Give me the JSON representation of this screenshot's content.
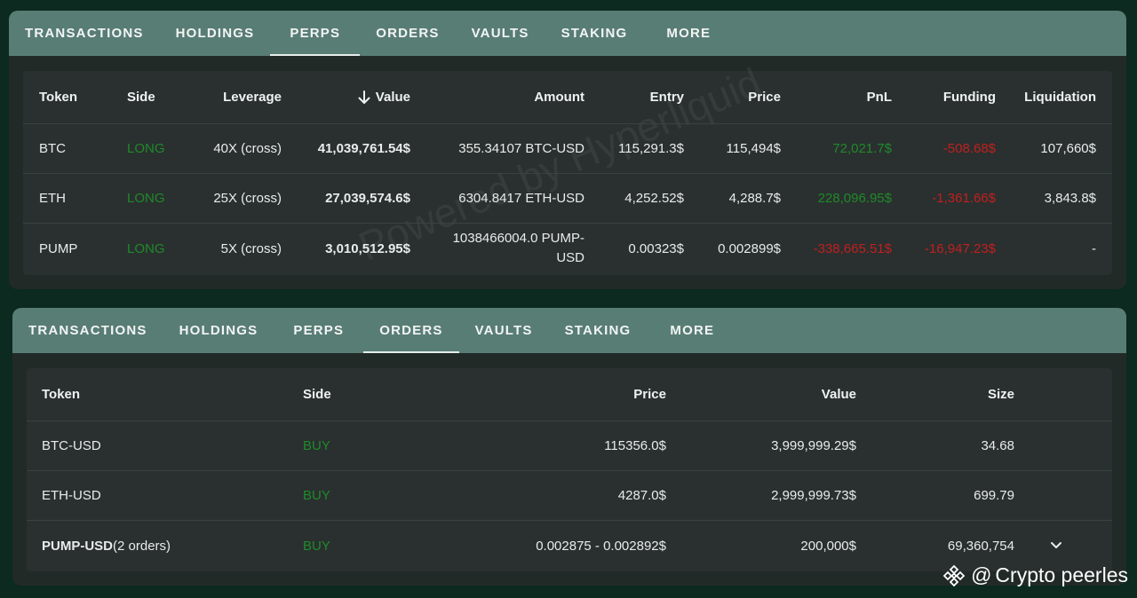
{
  "perps_panel": {
    "tabs": [
      "TRANSACTIONS",
      "HOLDINGS",
      "PERPS",
      "ORDERS",
      "VAULTS",
      "STAKING",
      "MORE"
    ],
    "active_tab": "PERPS",
    "watermark": "Powered by Hyperliquid",
    "columns": {
      "token": "Token",
      "side": "Side",
      "leverage": "Leverage",
      "value": "Value",
      "amount": "Amount",
      "entry": "Entry",
      "price": "Price",
      "pnl": "PnL",
      "funding": "Funding",
      "liquidation": "Liquidation"
    },
    "rows": [
      {
        "token": "BTC",
        "side": "LONG",
        "leverage": "40X (cross)",
        "value": "41,039,761.54$",
        "amount": "355.34107 BTC-USD",
        "entry": "115,291.3$",
        "price": "115,494$",
        "pnl": "72,021.7$",
        "funding": "-508.68$",
        "liquidation": "107,660$"
      },
      {
        "token": "ETH",
        "side": "LONG",
        "leverage": "25X (cross)",
        "value": "27,039,574.6$",
        "amount": "6304.8417 ETH-USD",
        "entry": "4,252.52$",
        "price": "4,288.7$",
        "pnl": "228,096.95$",
        "funding": "-1,361.66$",
        "liquidation": "3,843.8$"
      },
      {
        "token": "PUMP",
        "side": "LONG",
        "leverage": "5X (cross)",
        "value": "3,010,512.95$",
        "amount": "1038466004.0 PUMP-USD",
        "entry": "0.00323$",
        "price": "0.002899$",
        "pnl": "-338,665.51$",
        "funding": "-16,947.23$",
        "liquidation": "-"
      }
    ]
  },
  "orders_panel": {
    "tabs": [
      "TRANSACTIONS",
      "HOLDINGS",
      "PERPS",
      "ORDERS",
      "VAULTS",
      "STAKING",
      "MORE"
    ],
    "active_tab": "ORDERS",
    "columns": {
      "token": "Token",
      "side": "Side",
      "price": "Price",
      "value": "Value",
      "size": "Size"
    },
    "rows": [
      {
        "token": "BTC-USD",
        "token_suffix": "",
        "side": "BUY",
        "price": "115356.0$",
        "value": "3,999,999.29$",
        "size": "34.68"
      },
      {
        "token": "ETH-USD",
        "token_suffix": "",
        "side": "BUY",
        "price": "4287.0$",
        "value": "2,999,999.73$",
        "size": "699.79"
      },
      {
        "token": "PUMP-USD",
        "token_suffix": "(2 orders)",
        "side": "BUY",
        "price": "0.002875 - 0.002892$",
        "value": "200,000$",
        "size": "69,360,754"
      }
    ]
  },
  "footer": {
    "at": "@",
    "brand_text": "Crypto peerles"
  },
  "colors": {
    "positive": "#1f8a2a",
    "negative": "#c01f1f",
    "tabbar": "#587d74",
    "panel": "#222a28"
  }
}
